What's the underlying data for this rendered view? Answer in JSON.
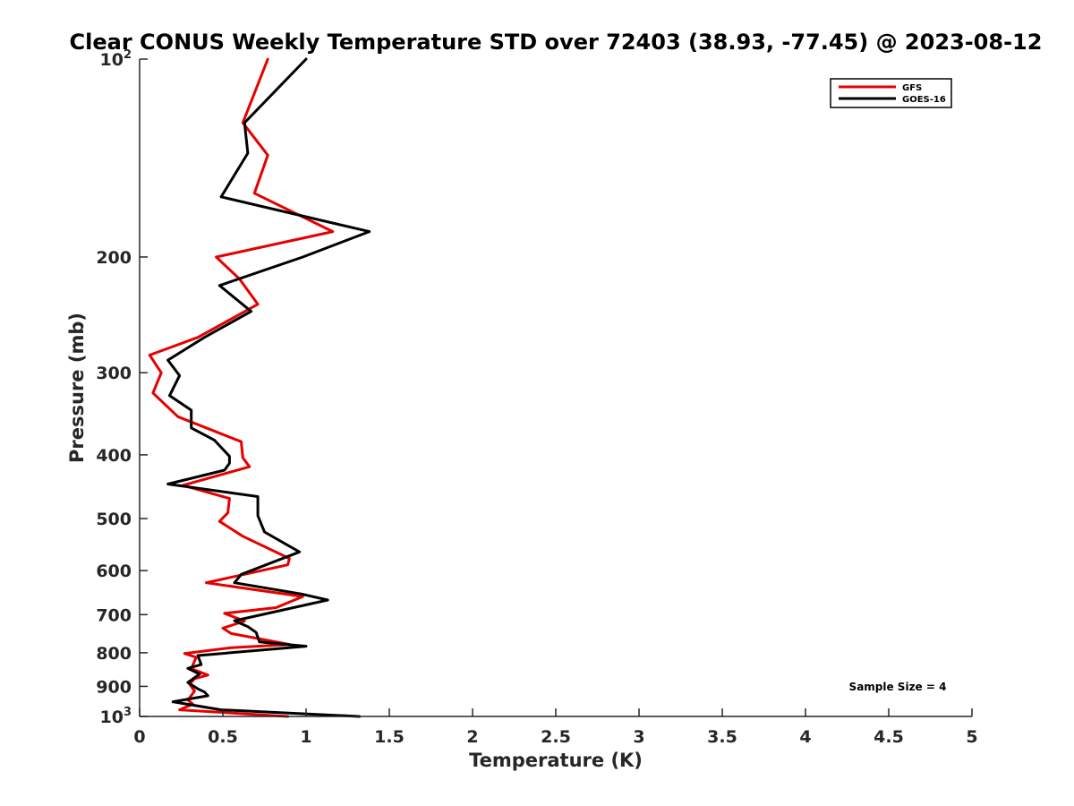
{
  "chart_data": {
    "type": "line",
    "title": "Clear CONUS Weekly Temperature STD over 72403 (38.93, -77.45) @ 2023-08-12",
    "xlabel": "Temperature (K)",
    "ylabel": "Pressure (mb)",
    "xlim": [
      0,
      5
    ],
    "ylim": [
      100,
      1000
    ],
    "y_scale": "log",
    "y_reversed": true,
    "grid": false,
    "legend_position": "top-right",
    "x_ticks": [
      "0",
      "0.5",
      "1",
      "1.5",
      "2",
      "2.5",
      "3",
      "3.5",
      "4",
      "4.5",
      "5"
    ],
    "y_ticks": [
      {
        "value": 100,
        "base": "10",
        "exp": "2"
      },
      {
        "value": 200,
        "label": "200"
      },
      {
        "value": 300,
        "label": "300"
      },
      {
        "value": 400,
        "label": "400"
      },
      {
        "value": 500,
        "label": "500"
      },
      {
        "value": 600,
        "label": "600"
      },
      {
        "value": 700,
        "label": "700"
      },
      {
        "value": 800,
        "label": "800"
      },
      {
        "value": 900,
        "label": "900"
      },
      {
        "value": 1000,
        "base": "10",
        "exp": "3"
      }
    ],
    "series": [
      {
        "name": "GFS",
        "color": "#e60000",
        "points": [
          [
            0.77,
            100
          ],
          [
            0.62,
            125
          ],
          [
            0.77,
            140
          ],
          [
            0.69,
            160
          ],
          [
            1.16,
            183
          ],
          [
            0.46,
            200
          ],
          [
            0.6,
            216
          ],
          [
            0.71,
            236
          ],
          [
            0.35,
            265
          ],
          [
            0.06,
            282
          ],
          [
            0.13,
            300
          ],
          [
            0.08,
            322
          ],
          [
            0.23,
            350
          ],
          [
            0.61,
            382
          ],
          [
            0.62,
            404
          ],
          [
            0.66,
            417
          ],
          [
            0.26,
            445
          ],
          [
            0.54,
            466
          ],
          [
            0.53,
            490
          ],
          [
            0.48,
            505
          ],
          [
            0.62,
            532
          ],
          [
            0.9,
            575
          ],
          [
            0.89,
            588
          ],
          [
            0.4,
            626
          ],
          [
            0.98,
            657
          ],
          [
            0.82,
            683
          ],
          [
            0.51,
            697
          ],
          [
            0.63,
            716
          ],
          [
            0.5,
            734
          ],
          [
            0.55,
            748
          ],
          [
            0.9,
            777
          ],
          [
            0.55,
            786
          ],
          [
            0.27,
            802
          ],
          [
            0.34,
            813
          ],
          [
            0.31,
            846
          ],
          [
            0.41,
            865
          ],
          [
            0.33,
            876
          ],
          [
            0.3,
            893
          ],
          [
            0.33,
            915
          ],
          [
            0.29,
            944
          ],
          [
            0.32,
            958
          ],
          [
            0.24,
            977
          ],
          [
            0.89,
            1000
          ]
        ]
      },
      {
        "name": "GOES-16",
        "color": "#000000",
        "points": [
          [
            1.0,
            100
          ],
          [
            0.63,
            125
          ],
          [
            0.65,
            139
          ],
          [
            0.49,
            162
          ],
          [
            1.38,
            183
          ],
          [
            0.98,
            200
          ],
          [
            0.48,
            221
          ],
          [
            0.67,
            242
          ],
          [
            0.39,
            265
          ],
          [
            0.17,
            287
          ],
          [
            0.24,
            303
          ],
          [
            0.18,
            325
          ],
          [
            0.31,
            342
          ],
          [
            0.31,
            364
          ],
          [
            0.45,
            380
          ],
          [
            0.54,
            402
          ],
          [
            0.54,
            412
          ],
          [
            0.51,
            422
          ],
          [
            0.17,
            443
          ],
          [
            0.71,
            463
          ],
          [
            0.71,
            495
          ],
          [
            0.75,
            524
          ],
          [
            0.96,
            562
          ],
          [
            0.61,
            608
          ],
          [
            0.57,
            626
          ],
          [
            0.97,
            651
          ],
          [
            1.13,
            665
          ],
          [
            0.57,
            715
          ],
          [
            0.65,
            730
          ],
          [
            0.7,
            745
          ],
          [
            0.72,
            770
          ],
          [
            1.0,
            782
          ],
          [
            0.35,
            808
          ],
          [
            0.37,
            834
          ],
          [
            0.29,
            845
          ],
          [
            0.36,
            862
          ],
          [
            0.29,
            888
          ],
          [
            0.35,
            908
          ],
          [
            0.39,
            918
          ],
          [
            0.41,
            930
          ],
          [
            0.2,
            950
          ],
          [
            0.49,
            977
          ],
          [
            1.32,
            1000
          ]
        ]
      }
    ],
    "annotation": "Sample Size = 4"
  }
}
